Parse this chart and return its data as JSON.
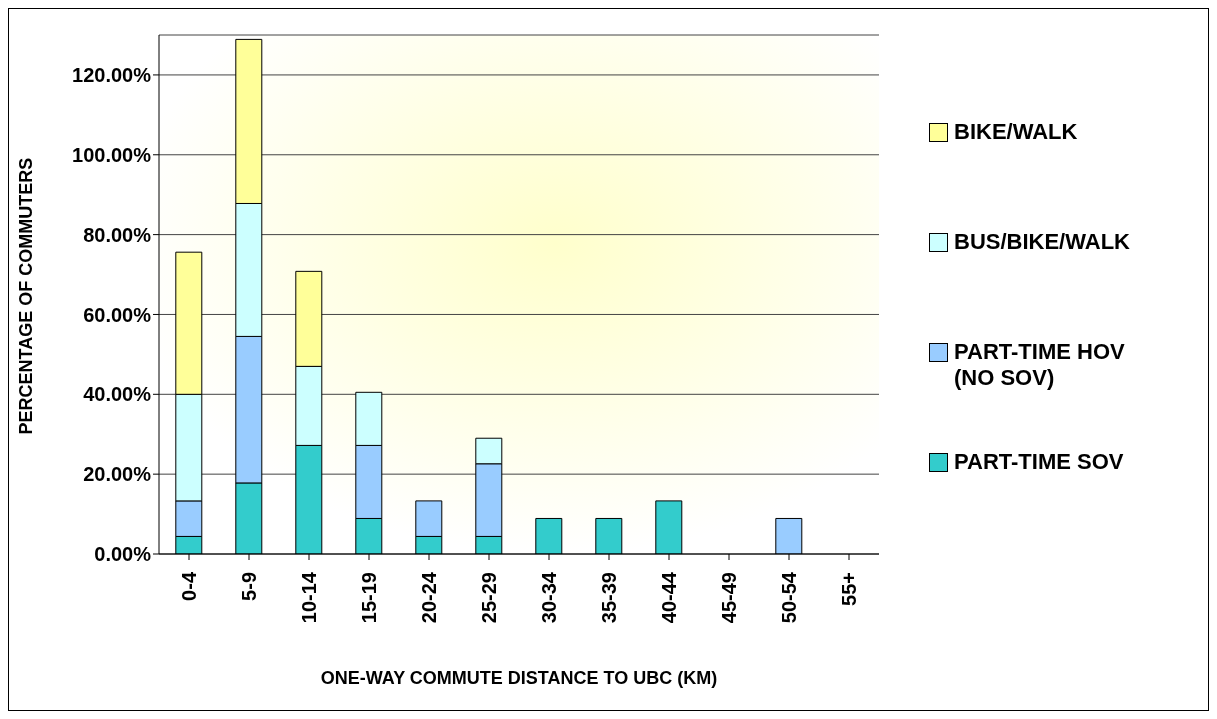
{
  "chart_data": {
    "type": "bar",
    "stacked": true,
    "xlabel": "ONE-WAY COMMUTE DISTANCE TO UBC (KM)",
    "ylabel": "PERCENTAGE OF COMMUTERS",
    "categories": [
      "0-4",
      "5-9",
      "10-14",
      "15-19",
      "20-24",
      "25-29",
      "30-34",
      "35-39",
      "40-44",
      "45-49",
      "50-54",
      "55+"
    ],
    "series": [
      {
        "name": "PART-TIME SOV",
        "color": "#33cccc",
        "values": [
          4.4,
          17.8,
          27.2,
          8.9,
          4.4,
          4.4,
          8.9,
          8.9,
          13.3,
          null,
          null,
          null
        ]
      },
      {
        "name": "PART-TIME HOV (NO SOV)",
        "color": "#99ccff",
        "values": [
          8.9,
          36.7,
          null,
          18.3,
          8.9,
          18.2,
          null,
          null,
          null,
          null,
          8.9,
          null
        ]
      },
      {
        "name": "BUS/BIKE/WALK",
        "color": "#ccffff",
        "values": [
          26.7,
          33.3,
          19.8,
          13.3,
          null,
          6.4,
          null,
          null,
          null,
          null,
          null,
          null
        ]
      },
      {
        "name": "BIKE/WALK",
        "color": "#ffff99",
        "values": [
          35.6,
          41.1,
          23.8,
          null,
          null,
          null,
          null,
          null,
          null,
          null,
          null,
          null
        ]
      }
    ],
    "ylim": [
      0,
      130
    ],
    "yticks": [
      {
        "value": 0,
        "label": "0.00%"
      },
      {
        "value": 20,
        "label": "20.00%"
      },
      {
        "value": 40,
        "label": "40.00%"
      },
      {
        "value": 60,
        "label": "60.00%"
      },
      {
        "value": 80,
        "label": "80.00%"
      },
      {
        "value": 100,
        "label": "100.00%"
      },
      {
        "value": 120,
        "label": "120.00%"
      }
    ],
    "grid": "y",
    "legend": "right"
  }
}
